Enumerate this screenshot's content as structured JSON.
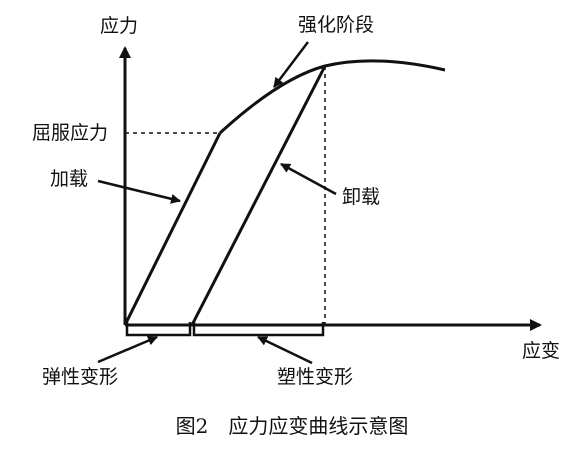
{
  "axes": {
    "y_label": "应力",
    "x_label": "应变"
  },
  "annotations": {
    "yield_stress": "屈服应力",
    "loading": "加载",
    "unloading": "卸载",
    "strengthening": "强化阶段",
    "elastic_deformation": "弹性变形",
    "plastic_deformation": "塑性变形"
  },
  "caption": "图2　应力应变曲线示意图",
  "colors": {
    "ink": "#111111",
    "background": "#ffffff"
  }
}
